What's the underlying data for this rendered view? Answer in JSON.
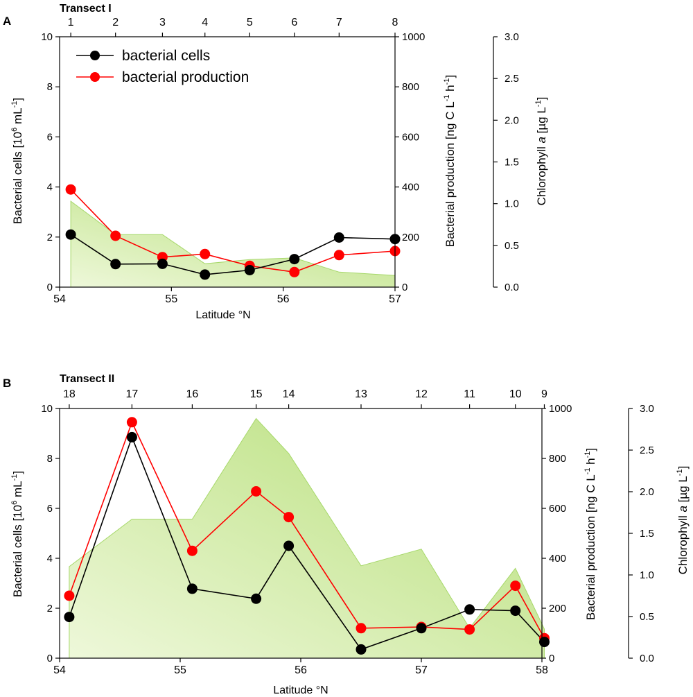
{
  "colors": {
    "cells": "#000000",
    "production": "#ff0000",
    "chl_fill_light": "#eaf6d2",
    "chl_fill_dark": "#b7e07a",
    "chl_edge": "#a6d86a"
  },
  "legend": {
    "cells": "bacterial cells",
    "production": "bacterial production"
  },
  "chart_data": [
    {
      "panel": "A",
      "type": "line",
      "transect_title": "Transect I",
      "xlabel": "Latitude °N",
      "ylabel_left_text": "Bacterial cells [10",
      "ylabel_left_sup": "6",
      "ylabel_left_unit": " mL",
      "ylabel_left_sup2": "-1",
      "ylabel_left_end": "]",
      "ylabel_right_text": "Bacterial production [ng C L",
      "ylabel_right_sup": "-1",
      "ylabel_right_mid": " h",
      "ylabel_right_sup2": "-1",
      "ylabel_right_end": "]",
      "ylabel_chl_text": "Chlorophyll ",
      "ylabel_chl_italic": "a",
      "ylabel_chl_unit": " [µg L",
      "ylabel_chl_sup": "-1",
      "ylabel_chl_end": "]",
      "xlim": [
        54,
        57
      ],
      "ylim_left": [
        0,
        10
      ],
      "ylim_right": [
        0,
        1000
      ],
      "ylim_chl": [
        0,
        3
      ],
      "x_ticks": [
        "54",
        "55",
        "56",
        "57"
      ],
      "y_left_ticks": [
        "0",
        "2",
        "4",
        "6",
        "8",
        "10"
      ],
      "y_right_ticks": [
        "0",
        "200",
        "400",
        "600",
        "800",
        "1000"
      ],
      "y_chl_ticks": [
        "0.0",
        "0.5",
        "1.0",
        "1.5",
        "2.0",
        "2.5",
        "3.0"
      ],
      "stations": [
        {
          "label": "1",
          "lat": 54.1
        },
        {
          "label": "2",
          "lat": 54.5
        },
        {
          "label": "3",
          "lat": 54.92
        },
        {
          "label": "4",
          "lat": 55.3
        },
        {
          "label": "5",
          "lat": 55.7
        },
        {
          "label": "6",
          "lat": 56.1
        },
        {
          "label": "7",
          "lat": 56.5
        },
        {
          "label": "8",
          "lat": 57.0
        }
      ],
      "series": [
        {
          "name": "bacterial cells",
          "axis": "left",
          "x": [
            54.1,
            54.5,
            54.92,
            55.3,
            55.7,
            56.1,
            56.5,
            57.0
          ],
          "values": [
            2.1,
            0.92,
            0.93,
            0.5,
            0.68,
            1.12,
            1.98,
            1.92
          ]
        },
        {
          "name": "bacterial production",
          "axis": "right",
          "x": [
            54.1,
            54.5,
            54.92,
            55.3,
            55.7,
            56.1,
            56.5,
            57.0
          ],
          "values": [
            390,
            205,
            120,
            132,
            85,
            60,
            128,
            144
          ]
        },
        {
          "name": "chlorophyll a",
          "axis": "chl",
          "type": "area",
          "x": [
            54.1,
            54.5,
            54.92,
            55.3,
            55.7,
            56.1,
            56.5,
            57.0
          ],
          "values": [
            1.03,
            0.63,
            0.63,
            0.28,
            0.33,
            0.35,
            0.18,
            0.14
          ]
        }
      ]
    },
    {
      "panel": "B",
      "type": "line",
      "transect_title": "Transect II",
      "xlabel": "Latitude °N",
      "ylabel_left_text": "Bacterial cells [10",
      "ylabel_left_sup": "6",
      "ylabel_left_unit": " mL",
      "ylabel_left_sup2": "-1",
      "ylabel_left_end": "]",
      "ylabel_right_text": "Bacterial production [ng C L",
      "ylabel_right_sup": "-1",
      "ylabel_right_mid": " h",
      "ylabel_right_sup2": "-1",
      "ylabel_right_end": "]",
      "ylabel_chl_text": "Chlorophyll ",
      "ylabel_chl_italic": "a",
      "ylabel_chl_unit": " [µg L",
      "ylabel_chl_sup": "-1",
      "ylabel_chl_end": "]",
      "xlim": [
        54,
        58
      ],
      "ylim_left": [
        0,
        10
      ],
      "ylim_right": [
        0,
        1000
      ],
      "ylim_chl": [
        0,
        3
      ],
      "x_ticks": [
        "54",
        "55",
        "56",
        "57",
        "58"
      ],
      "y_left_ticks": [
        "0",
        "2",
        "4",
        "6",
        "8",
        "10"
      ],
      "y_right_ticks": [
        "0",
        "200",
        "400",
        "600",
        "800",
        "1000"
      ],
      "y_chl_ticks": [
        "0.0",
        "0.5",
        "1.0",
        "1.5",
        "2.0",
        "2.5",
        "3.0"
      ],
      "stations": [
        {
          "label": "18",
          "lat": 54.08
        },
        {
          "label": "17",
          "lat": 54.6
        },
        {
          "label": "16",
          "lat": 55.1
        },
        {
          "label": "15",
          "lat": 55.63
        },
        {
          "label": "14",
          "lat": 55.9
        },
        {
          "label": "13",
          "lat": 56.5
        },
        {
          "label": "12",
          "lat": 57.0
        },
        {
          "label": "11",
          "lat": 57.4
        },
        {
          "label": "10",
          "lat": 57.78
        },
        {
          "label": "9",
          "lat": 58.02
        }
      ],
      "series": [
        {
          "name": "bacterial cells",
          "axis": "left",
          "x": [
            54.08,
            54.6,
            55.1,
            55.63,
            55.9,
            56.5,
            57.0,
            57.4,
            57.78,
            58.02
          ],
          "values": [
            1.65,
            8.85,
            2.78,
            2.38,
            4.5,
            0.35,
            1.2,
            1.95,
            1.9,
            0.65
          ]
        },
        {
          "name": "bacterial production",
          "axis": "right",
          "x": [
            54.08,
            54.6,
            55.1,
            55.63,
            55.9,
            56.5,
            57.0,
            57.4,
            57.78,
            58.02
          ],
          "values": [
            250,
            945,
            430,
            668,
            565,
            120,
            125,
            115,
            290,
            80
          ]
        },
        {
          "name": "chlorophyll a",
          "axis": "chl",
          "type": "area",
          "x": [
            54.08,
            54.6,
            55.1,
            55.63,
            55.9,
            56.5,
            57.0,
            57.4,
            57.78,
            58.02
          ],
          "values": [
            1.1,
            1.67,
            1.67,
            2.88,
            2.46,
            1.11,
            1.31,
            0.36,
            1.08,
            0.35
          ]
        }
      ]
    }
  ]
}
